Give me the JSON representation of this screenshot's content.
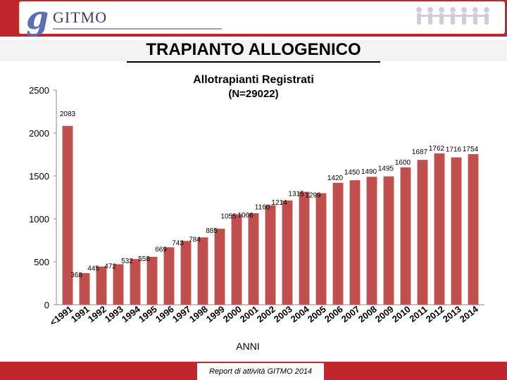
{
  "header": {
    "logo_text": "GITMO"
  },
  "page_title": "TRAPIANTO ALLOGENICO",
  "footer": {
    "text": "Report di attività GITMO 2014"
  },
  "colors": {
    "bar": "#c0504d",
    "brand_red": "#c0272d"
  },
  "chart_data": {
    "type": "bar",
    "title": "Allotrapianti Registrati",
    "subtitle": "(N=29022)",
    "xlabel": "ANNI",
    "ylabel": "",
    "ylim": [
      0,
      2500
    ],
    "yticks": [
      0,
      500,
      1000,
      1500,
      2000,
      2500
    ],
    "grid": false,
    "legend": "none",
    "categories": [
      "<1991",
      "1991",
      "1992",
      "1993",
      "1994",
      "1995",
      "1996",
      "1997",
      "1998",
      "1999",
      "2000",
      "2001",
      "2002",
      "2003",
      "2004",
      "2005",
      "2006",
      "2007",
      "2008",
      "2009",
      "2010",
      "2011",
      "2012",
      "2013",
      "2014"
    ],
    "values": [
      2083,
      368,
      445,
      472,
      532,
      558,
      669,
      743,
      784,
      885,
      1055,
      1066,
      1160,
      1214,
      1315,
      1299,
      1420,
      1450,
      1490,
      1495,
      1600,
      1687,
      1762,
      1716,
      1754
    ]
  }
}
